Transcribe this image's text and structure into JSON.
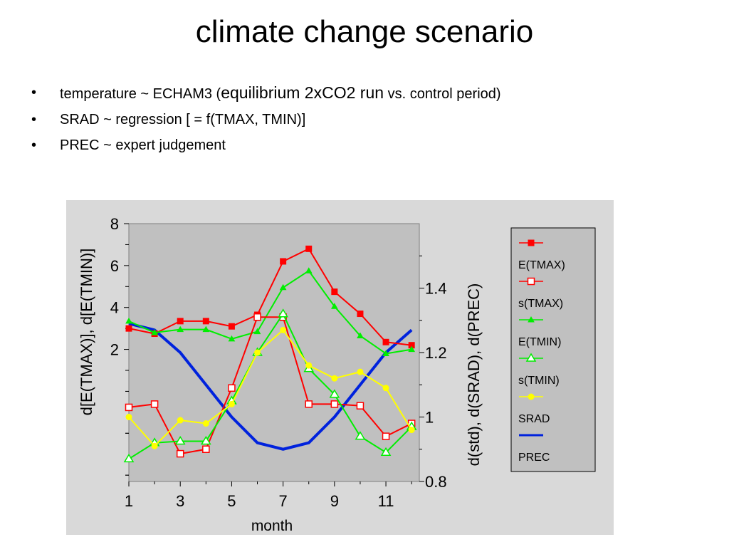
{
  "slide": {
    "title": "climate change scenario",
    "bullets": [
      {
        "a": "temperature ~ ECHAM3 (",
        "b": "equilibrium 2xCO2 run",
        "c": "  vs. control period)"
      },
      {
        "a": "SRAD ~ regression [ =  f(TMAX, TMIN)]"
      },
      {
        "a": "PREC ~ expert judgement"
      }
    ],
    "bullet_glyph": "•"
  },
  "chart_data": {
    "type": "line",
    "xlabel": "month",
    "ylabel_left": "d[E(TMAX)], d[E(TMIN)]",
    "ylabel_right": "d(std),  d(SRAD),  d(PREC)",
    "x": [
      1,
      2,
      3,
      4,
      5,
      6,
      7,
      8,
      9,
      10,
      11,
      12
    ],
    "x_ticks": [
      1,
      3,
      5,
      7,
      9,
      11
    ],
    "x_range": [
      1,
      12.3
    ],
    "y_left_range": [
      -4.3,
      8
    ],
    "y_left_ticks": [
      2,
      4,
      6,
      8
    ],
    "y_right_range": [
      0.8,
      1.6
    ],
    "y_right_ticks": [
      0.8,
      1,
      1.2,
      1.4
    ],
    "legend_position": "right",
    "grid": false,
    "series": [
      {
        "name": "E(TMAX)",
        "axis": "left",
        "color": "#ff0000",
        "marker": "square-filled",
        "values": [
          3.0,
          2.75,
          3.35,
          3.35,
          3.1,
          3.65,
          6.2,
          6.8,
          4.75,
          3.7,
          2.35,
          2.2
        ]
      },
      {
        "name": "s(TMAX)",
        "axis": "right",
        "color": "#ff0000",
        "marker": "square-open",
        "values": [
          1.03,
          1.04,
          0.886,
          0.9,
          1.09,
          1.31,
          1.31,
          1.04,
          1.04,
          1.035,
          0.94,
          0.98
        ]
      },
      {
        "name": "E(TMIN)",
        "axis": "left",
        "color": "#00ee00",
        "marker": "triangle-filled",
        "values": [
          3.35,
          2.8,
          2.95,
          2.95,
          2.5,
          2.85,
          4.95,
          5.75,
          4.05,
          2.65,
          1.8,
          2.0
        ]
      },
      {
        "name": "s(TMIN)",
        "axis": "right",
        "color": "#00ee00",
        "marker": "triangle-open",
        "values": [
          0.87,
          0.92,
          0.925,
          0.925,
          1.05,
          1.2,
          1.32,
          1.15,
          1.07,
          0.94,
          0.89,
          0.97
        ]
      },
      {
        "name": "SRAD",
        "axis": "right",
        "color": "#ffff00",
        "marker": "circle-filled",
        "values": [
          1.0,
          0.91,
          0.99,
          0.98,
          1.04,
          1.2,
          1.27,
          1.16,
          1.12,
          1.14,
          1.09,
          0.96
        ]
      },
      {
        "name": "PREC",
        "axis": "right",
        "color": "#0022dd",
        "marker": "none",
        "values": [
          1.29,
          1.27,
          1.2,
          1.1,
          1.0,
          0.92,
          0.9,
          0.92,
          1.0,
          1.1,
          1.2,
          1.27
        ]
      }
    ]
  }
}
